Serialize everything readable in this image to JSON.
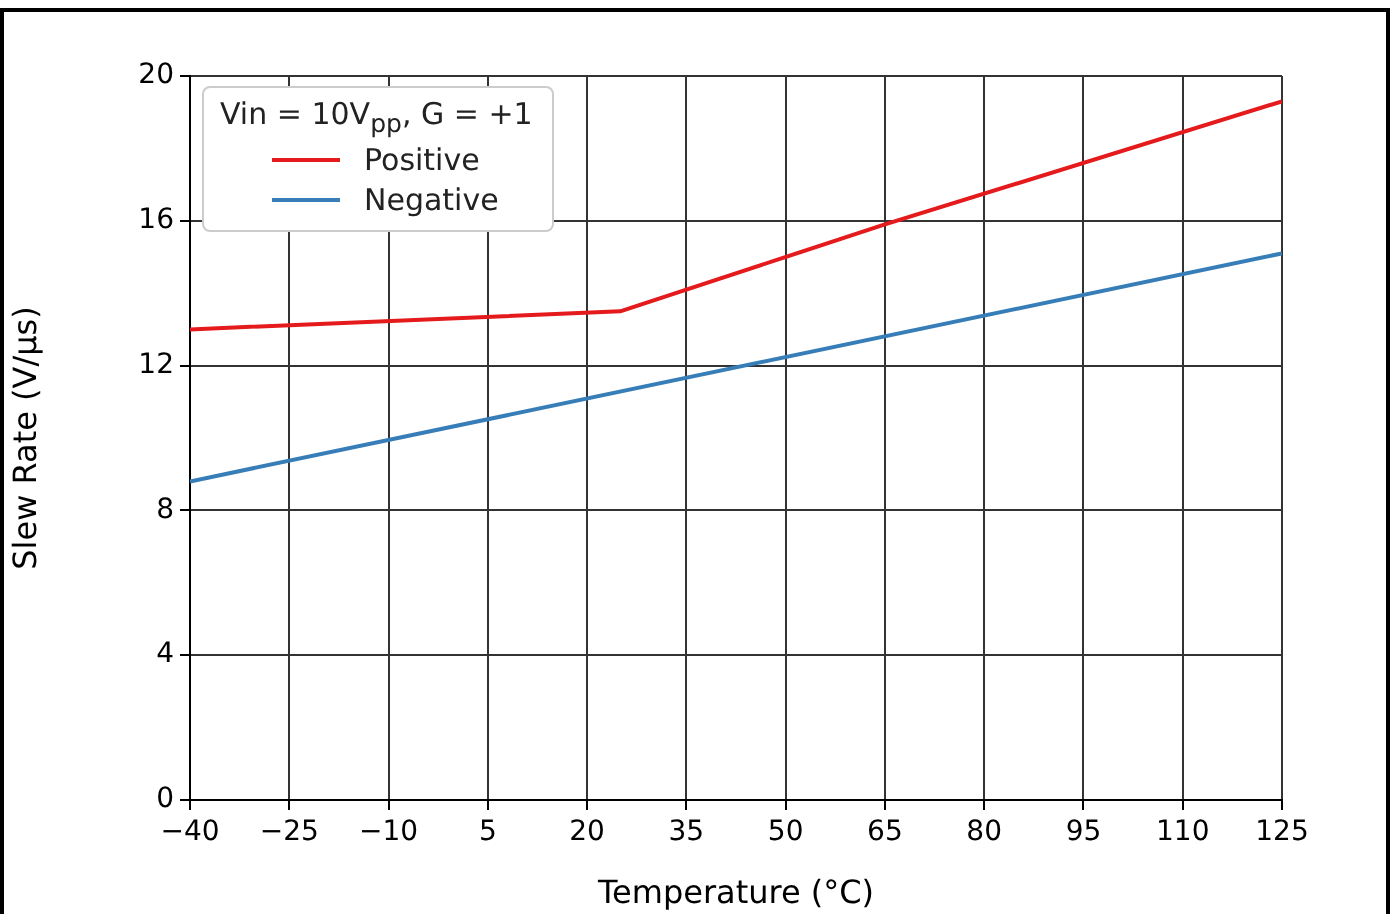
{
  "chart_data": {
    "type": "line",
    "xlabel": "Temperature (°C)",
    "ylabel": "Slew Rate (V/μs)",
    "legend_title": "Vin = 10V$_{pp}$,  G = +1",
    "legend": "top left",
    "grid": true,
    "marker": "none",
    "line_style": "solid",
    "xlim": [
      -40,
      125
    ],
    "xticks": [
      {
        "value": -40,
        "label": "−40"
      },
      {
        "value": -25,
        "label": "−25"
      },
      {
        "value": -10,
        "label": "−10"
      },
      5,
      20,
      35,
      50,
      65,
      80,
      95,
      110,
      125
    ],
    "ylim": [
      0,
      20
    ],
    "yticks": [
      0,
      4,
      8,
      12,
      16,
      20
    ],
    "series": [
      {
        "name": "Positive",
        "color": "#e41a1c",
        "x": [
          -40,
          25,
          65,
          125
        ],
        "values": [
          13.0,
          13.5,
          15.9,
          19.3
        ]
      },
      {
        "name": "Negative",
        "color": "#377eb8",
        "x": [
          -40,
          125
        ],
        "values": [
          8.8,
          15.1
        ]
      }
    ]
  }
}
